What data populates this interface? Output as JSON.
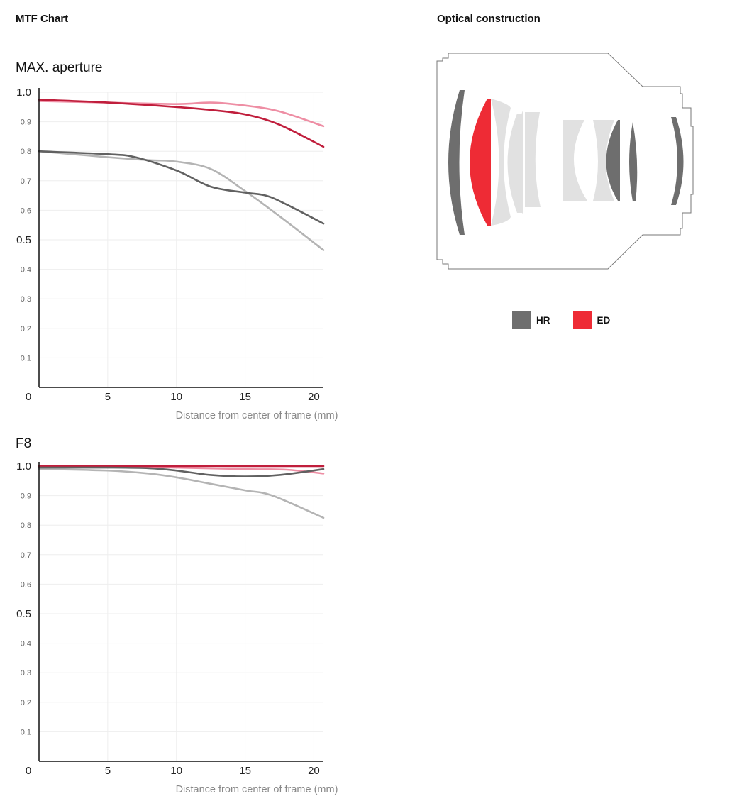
{
  "header": {
    "mtf_title": "MTF Chart",
    "optical_title": "Optical construction"
  },
  "colors": {
    "sagittal_10": "#ee8ea4",
    "meridional_10": "#c01e3c",
    "sagittal_30": "#b4b4b4",
    "meridional_30": "#616161",
    "hr": "#6e6e6e",
    "ed": "#ee2b35",
    "normal_glass": "#e1e1e1"
  },
  "legend": [
    {
      "label": "HR",
      "color": "#6e6e6e"
    },
    {
      "label": "ED",
      "color": "#ee2b35"
    }
  ],
  "chart_data": [
    {
      "type": "line",
      "title": "MAX. aperture",
      "xlabel": "Distance from center of frame (mm)",
      "ylabel": "",
      "xlim": [
        0,
        20.7
      ],
      "ylim": [
        0,
        1.0
      ],
      "grid": true,
      "x_ticks": [
        "5",
        "10",
        "15",
        "20"
      ],
      "x_tick_values": [
        5,
        10,
        15,
        20
      ],
      "y_ticks": [
        {
          "value": 1.0,
          "label": "1.0",
          "major": true
        },
        {
          "value": 0.9,
          "label": "0.9",
          "major": false
        },
        {
          "value": 0.8,
          "label": "0.8",
          "major": false
        },
        {
          "value": 0.7,
          "label": "0.7",
          "major": false
        },
        {
          "value": 0.6,
          "label": "0.6",
          "major": false
        },
        {
          "value": 0.5,
          "label": "0.5",
          "major": true
        },
        {
          "value": 0.4,
          "label": "0.4",
          "major": false
        },
        {
          "value": 0.3,
          "label": "0.3",
          "major": false
        },
        {
          "value": 0.2,
          "label": "0.2",
          "major": false
        },
        {
          "value": 0.1,
          "label": "0.1",
          "major": false
        }
      ],
      "origin_label": "0",
      "series": [
        {
          "color": "#ee8ea4",
          "x": [
            0,
            5,
            10,
            12.5,
            15,
            17.5,
            20.7
          ],
          "values": [
            0.97,
            0.965,
            0.96,
            0.965,
            0.955,
            0.935,
            0.885
          ]
        },
        {
          "color": "#c01e3c",
          "x": [
            0,
            5,
            10,
            12.5,
            15,
            17.5,
            20.7
          ],
          "values": [
            0.975,
            0.965,
            0.95,
            0.94,
            0.925,
            0.89,
            0.815
          ]
        },
        {
          "color": "#b4b4b4",
          "x": [
            0,
            5,
            8,
            10,
            12.5,
            15,
            17.5,
            20.7
          ],
          "values": [
            0.8,
            0.78,
            0.77,
            0.765,
            0.74,
            0.665,
            0.58,
            0.465
          ]
        },
        {
          "color": "#616161",
          "x": [
            0,
            5,
            7,
            10,
            12.5,
            15,
            16.5,
            18,
            20.7
          ],
          "values": [
            0.8,
            0.79,
            0.78,
            0.735,
            0.68,
            0.66,
            0.65,
            0.62,
            0.555
          ]
        }
      ]
    },
    {
      "type": "line",
      "title": "F8",
      "xlabel": "Distance from center of frame (mm)",
      "ylabel": "",
      "xlim": [
        0,
        20.7
      ],
      "ylim": [
        0,
        1.0
      ],
      "grid": true,
      "x_ticks": [
        "5",
        "10",
        "15",
        "20"
      ],
      "x_tick_values": [
        5,
        10,
        15,
        20
      ],
      "y_ticks": [
        {
          "value": 1.0,
          "label": "1.0",
          "major": true
        },
        {
          "value": 0.9,
          "label": "0.9",
          "major": false
        },
        {
          "value": 0.8,
          "label": "0.8",
          "major": false
        },
        {
          "value": 0.7,
          "label": "0.7",
          "major": false
        },
        {
          "value": 0.6,
          "label": "0.6",
          "major": false
        },
        {
          "value": 0.5,
          "label": "0.5",
          "major": true
        },
        {
          "value": 0.4,
          "label": "0.4",
          "major": false
        },
        {
          "value": 0.3,
          "label": "0.3",
          "major": false
        },
        {
          "value": 0.2,
          "label": "0.2",
          "major": false
        },
        {
          "value": 0.1,
          "label": "0.1",
          "major": false
        }
      ],
      "origin_label": "0",
      "series": [
        {
          "color": "#ee8ea4",
          "x": [
            0,
            5,
            10,
            15,
            18,
            20.7
          ],
          "values": [
            1.0,
            1.0,
            0.995,
            0.99,
            0.988,
            0.975
          ]
        },
        {
          "color": "#c01e3c",
          "x": [
            0,
            5,
            10,
            15,
            20.7
          ],
          "values": [
            1.0,
            1.0,
            1.0,
            1.0,
            1.0
          ]
        },
        {
          "color": "#b4b4b4",
          "x": [
            0,
            5,
            8,
            10,
            12.5,
            15,
            17,
            20.7
          ],
          "values": [
            0.99,
            0.985,
            0.975,
            0.962,
            0.94,
            0.918,
            0.9,
            0.825
          ]
        },
        {
          "color": "#616161",
          "x": [
            0,
            5,
            8,
            10,
            12.5,
            15,
            17.5,
            20.7
          ],
          "values": [
            0.995,
            0.995,
            0.993,
            0.985,
            0.97,
            0.965,
            0.97,
            0.99
          ]
        }
      ]
    }
  ]
}
